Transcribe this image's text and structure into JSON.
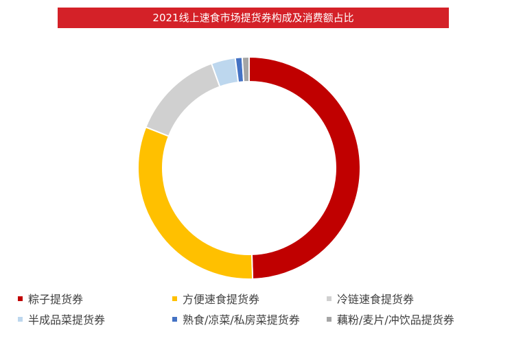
{
  "title": "2021线上速食市场提货券构成及消费额占比",
  "chart_data": {
    "type": "pie",
    "variant": "donut",
    "categories": [
      "粽子提货券",
      "方便速食提货券",
      "冷链速食提货券",
      "半成品菜提货券",
      "熟食/凉菜/私房菜提货券",
      "藕粉/麦片/冲饮品提货券"
    ],
    "values": [
      49.5,
      31.5,
      13.5,
      3.5,
      1.0,
      1.0
    ],
    "colors": [
      "#c00000",
      "#ffc000",
      "#d0d0d0",
      "#bdd7ee",
      "#4472c4",
      "#a5a5a5"
    ],
    "legend_position": "bottom"
  }
}
